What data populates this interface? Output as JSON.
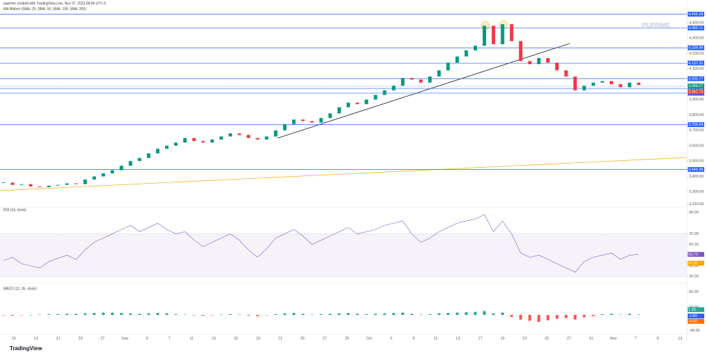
{
  "header": {
    "line1": "puprime created with TradingView.com, Nov 07, 2023 08:58 UTC-5",
    "line2": "MA Ribbon (SMA, 20, SMA, 50, SMA, 100, SMA, 200)",
    "watermark": "PUPRIME",
    "brand": "TradingView"
  },
  "chart_data": {
    "type": "candlestick",
    "closes": [
      3360,
      3345,
      3350,
      3335,
      3330,
      3340,
      3345,
      3355,
      3350,
      3380,
      3400,
      3420,
      3440,
      3470,
      3500,
      3520,
      3550,
      3580,
      3600,
      3620,
      3650,
      3630,
      3620,
      3640,
      3660,
      3680,
      3670,
      3650,
      3640,
      3660,
      3700,
      3740,
      3770,
      3760,
      3750,
      3780,
      3810,
      3850,
      3880,
      3870,
      3900,
      3930,
      3960,
      3990,
      4040,
      4030,
      4010,
      4050,
      4090,
      4140,
      4180,
      4220,
      4250,
      4380,
      4260,
      4390,
      4280,
      4150,
      4130,
      4170,
      4140,
      4090,
      4050,
      3960,
      3990,
      4010,
      4020,
      4000,
      3980,
      4010,
      3995
    ],
    "up_color": "#089981",
    "down_color": "#f23645",
    "ylim": [
      3200,
      4480
    ],
    "yticks": [
      {
        "value": 4400,
        "label": "4,400.00"
      },
      {
        "value": 4300,
        "label": "4,300.00"
      },
      {
        "value": 4200,
        "label": "4,200.00"
      },
      {
        "value": 4100,
        "label": "4,100.00"
      },
      {
        "value": 3900,
        "label": "3,900.00"
      },
      {
        "value": 3800,
        "label": "3,800.00"
      },
      {
        "value": 3700,
        "label": "3,700.00"
      },
      {
        "value": 3600,
        "label": "3,600.00"
      },
      {
        "value": 3500,
        "label": "3,500.00"
      },
      {
        "value": 3400,
        "label": "3,400.00"
      },
      {
        "value": 3300,
        "label": "3,300.00"
      },
      {
        "value": 3220,
        "label": "3,220.00"
      }
    ],
    "levels": [
      {
        "value": 4455.18,
        "label": "4,455.18"
      },
      {
        "value": 4365.71,
        "label": "4,365.71"
      },
      {
        "value": 4236.49,
        "label": "4,236.49"
      },
      {
        "value": 4137.31,
        "label": "4,137.31"
      },
      {
        "value": 4035.77,
        "label": "4,035.77"
      },
      {
        "value": 3971.58,
        "label": "3,971.58"
      },
      {
        "value": 3941.38,
        "label": "3,941.38"
      },
      {
        "value": 3736.54,
        "label": "3,736.54"
      },
      {
        "value": 3445.49,
        "label": "3,445.49"
      }
    ],
    "level_color": "#2962ff",
    "readouts": [
      {
        "value": 3988.27,
        "label": "3,988.27",
        "color": "#089981"
      },
      {
        "value": 3981.73,
        "label": "3,981.73",
        "color": "#f23645"
      }
    ],
    "categories": [
      "15",
      "19",
      "21",
      "23",
      "27",
      "Sep",
      "5",
      "7",
      "11",
      "13",
      "15",
      "19",
      "21",
      "25",
      "27",
      "29",
      "Oct",
      "5",
      "9",
      "11",
      "13",
      "17",
      "19",
      "23",
      "25",
      "27",
      "31",
      "Nov",
      "7",
      "9",
      "13"
    ],
    "rsi": {
      "title": "RSI (14, close)",
      "color": "#7e57c2",
      "ma_color": "#f7a600",
      "ma_value": 47.02,
      "values": [
        45,
        48,
        42,
        40,
        38,
        44,
        47,
        50,
        46,
        55,
        62,
        66,
        70,
        74,
        78,
        72,
        76,
        80,
        74,
        70,
        72,
        64,
        58,
        62,
        66,
        70,
        64,
        55,
        48,
        56,
        66,
        70,
        74,
        68,
        60,
        64,
        68,
        72,
        76,
        70,
        72,
        74,
        78,
        80,
        82,
        70,
        62,
        66,
        72,
        76,
        80,
        82,
        84,
        88,
        72,
        82,
        70,
        52,
        48,
        50,
        46,
        42,
        38,
        34,
        44,
        48,
        50,
        52,
        46,
        50,
        50.73
      ],
      "ylim": [
        25,
        95
      ],
      "band": [
        30,
        70
      ],
      "yticks": [
        {
          "value": 90,
          "label": "90.00"
        },
        {
          "value": 70,
          "label": "70.00"
        },
        {
          "value": 60,
          "label": "60.00"
        },
        {
          "value": 50,
          "label": "50.00"
        },
        {
          "value": 40,
          "label": "40.00"
        },
        {
          "value": 30,
          "label": "30.00"
        }
      ]
    },
    "macd": {
      "title": "MACD (12, 26, close)",
      "up_color": "#26a69a",
      "down_color": "#ff5252",
      "histogram": [
        -1,
        -2,
        -1,
        0,
        1,
        2,
        2,
        3,
        3,
        4,
        5,
        6,
        6,
        5,
        4,
        3,
        4,
        5,
        4,
        2,
        1,
        -1,
        -2,
        -1,
        1,
        2,
        1,
        -2,
        -3,
        -1,
        2,
        4,
        5,
        3,
        1,
        2,
        3,
        4,
        5,
        3,
        2,
        3,
        4,
        5,
        6,
        3,
        1,
        2,
        4,
        5,
        6,
        7,
        8,
        10,
        4,
        6,
        -5,
        -12,
        -15,
        -18,
        -14,
        -10,
        -8,
        -12,
        -6,
        -3,
        2,
        3,
        1,
        3,
        1.2
      ],
      "ylim": [
        -50,
        75
      ],
      "yticks": [
        {
          "value": 60,
          "label": "60.00"
        },
        {
          "value": 20,
          "label": "20.00"
        },
        {
          "value": -40,
          "label": "-40.00"
        }
      ],
      "readouts": [
        {
          "value": 1.2,
          "label": "1.20",
          "color": "#26a69a"
        },
        {
          "value": -2.8,
          "label": "-2.80",
          "color": "#2962ff"
        },
        {
          "value": -4,
          "label": "-4.00",
          "color": "#ff6d00"
        }
      ]
    }
  }
}
